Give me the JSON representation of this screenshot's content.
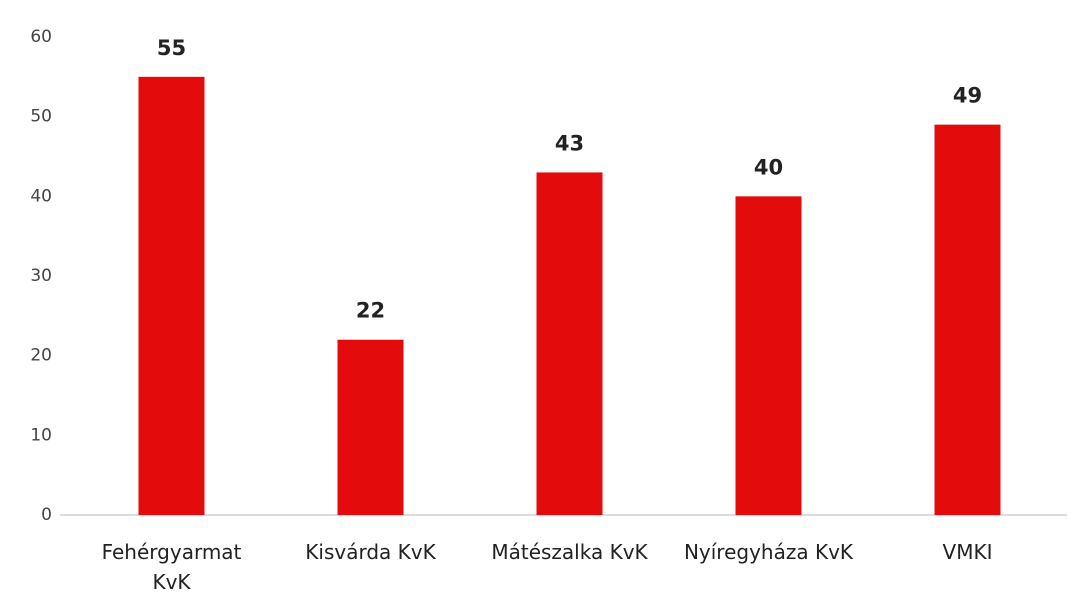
{
  "chart_data": {
    "type": "bar",
    "categories": [
      "Fehérgyarmat KvK",
      "Kisvárda KvK",
      "Mátészalka KvK",
      "Nyíregyháza KvK",
      "VMKI"
    ],
    "values": [
      55,
      22,
      43,
      40,
      49
    ],
    "color": "#e30b0b",
    "ylim": [
      0,
      60
    ],
    "yticks": [
      0,
      10,
      20,
      30,
      40,
      50,
      60
    ],
    "grid": false
  }
}
